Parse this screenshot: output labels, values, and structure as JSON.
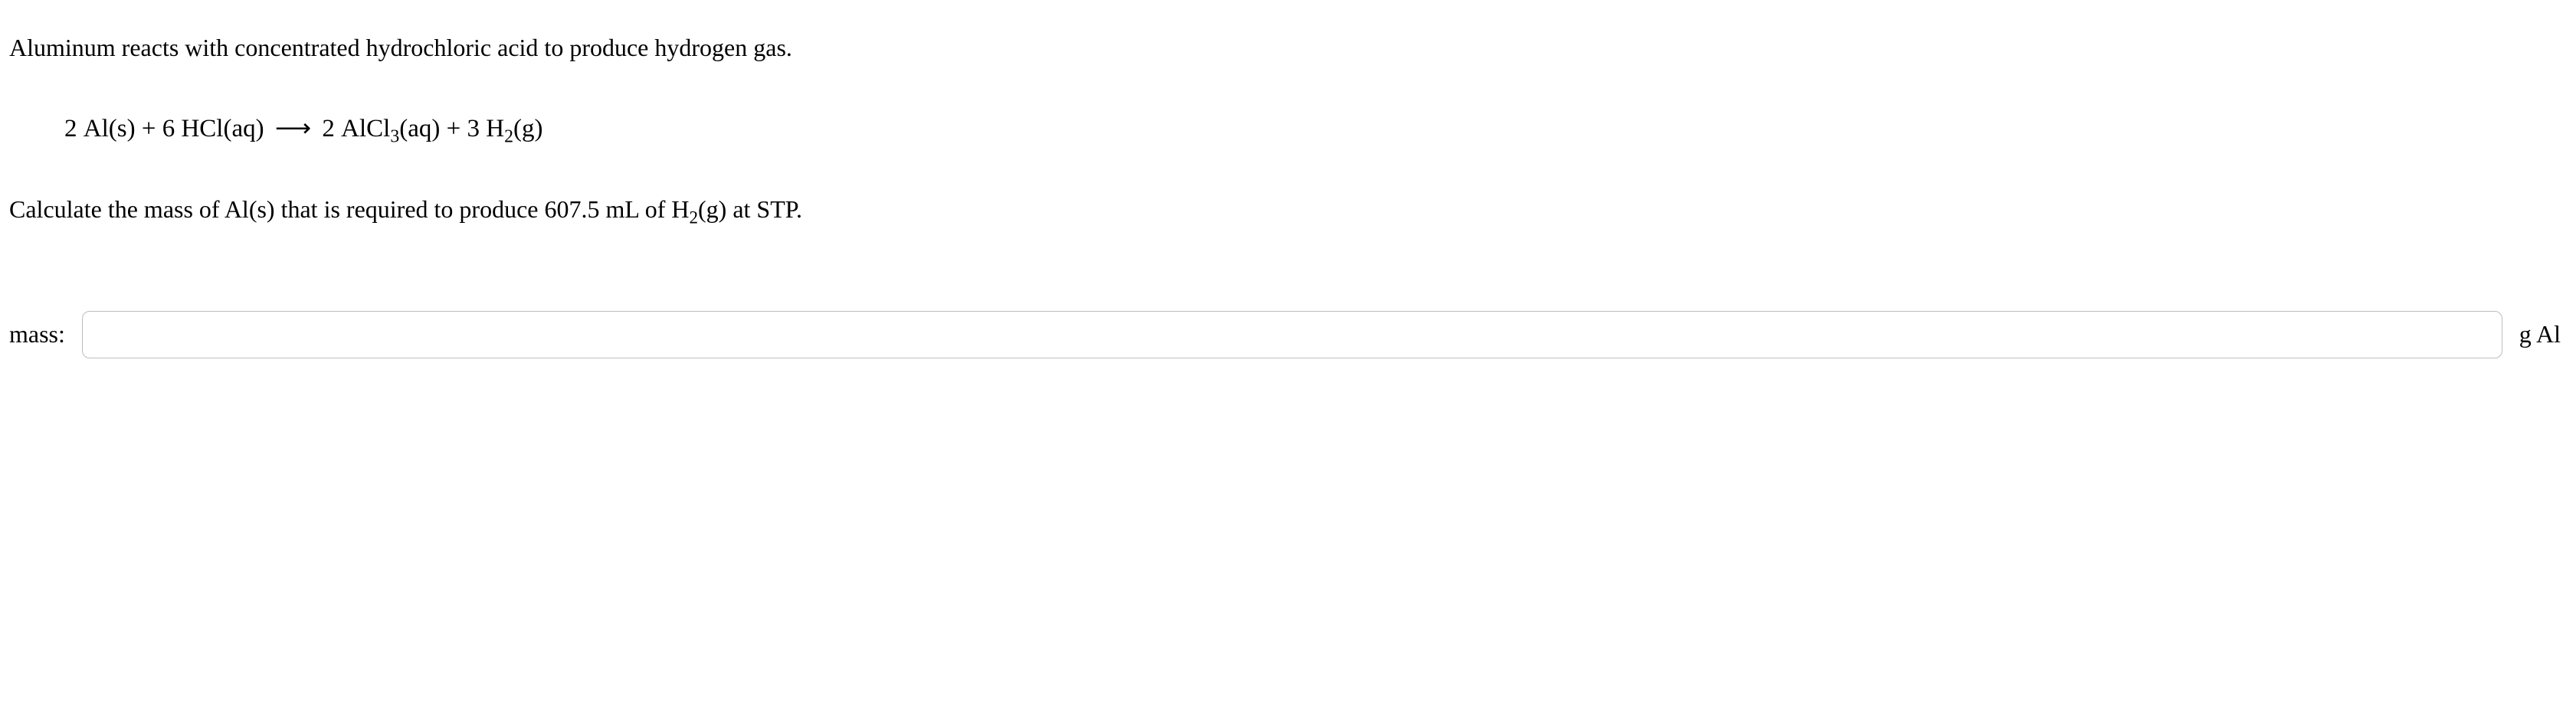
{
  "problem": {
    "intro": "Aluminum reacts with concentrated hydrochloric acid to produce hydrogen gas.",
    "equation": {
      "coef_al": "2",
      "al": "Al(s)",
      "plus1": " + ",
      "coef_hcl": "6",
      "hcl": "HCl(aq)",
      "arrow": "⟶",
      "coef_alcl3": "2",
      "alcl3_a": "AlCl",
      "alcl3_sub": "3",
      "alcl3_b": "(aq)",
      "plus2": " + ",
      "coef_h2": "3",
      "h2_a": "H",
      "h2_sub": "2",
      "h2_b": "(g)"
    },
    "question_a": "Calculate the mass of Al(s) that is required to produce 607.5 mL of H",
    "question_sub": "2",
    "question_b": "(g) at STP."
  },
  "answer": {
    "label": "mass:",
    "value": "",
    "unit": "g Al"
  }
}
